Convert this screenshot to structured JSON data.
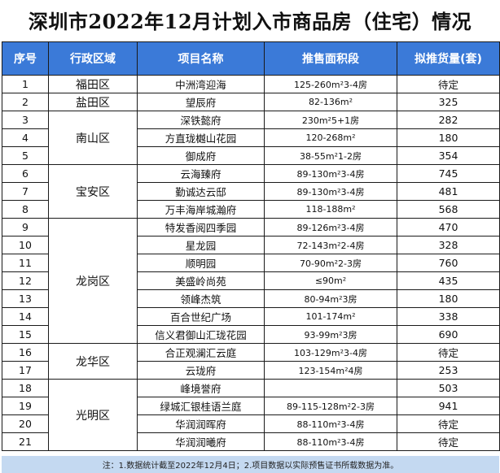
{
  "title": "深圳市2022年12月计划入市商品房（住宅）情况",
  "headers": {
    "seq": "序号",
    "district": "行政区域",
    "project": "项目名称",
    "area": "推售面积段",
    "units": "拟推货量(套)"
  },
  "rows": [
    {
      "seq": "1",
      "district": "福田区",
      "project": "中洲湾迎海",
      "area": "125-260m²3-4房",
      "units": "待定"
    },
    {
      "seq": "2",
      "district": "盐田区",
      "project": "望辰府",
      "area": "82-136m²",
      "units": "325"
    },
    {
      "seq": "3",
      "district": "南山区",
      "project": "深铁懿府",
      "area": "230m²5+1房",
      "units": "282"
    },
    {
      "seq": "4",
      "district": "",
      "project": "方直珑樾山花园",
      "area": "120-268m²",
      "units": "180"
    },
    {
      "seq": "5",
      "district": "",
      "project": "御成府",
      "area": "38-55m²1-2房",
      "units": "354"
    },
    {
      "seq": "6",
      "district": "宝安区",
      "project": "云海臻府",
      "area": "89-130m²3-4房",
      "units": "745"
    },
    {
      "seq": "7",
      "district": "",
      "project": "勤诚达云邸",
      "area": "89-130m²3-4房",
      "units": "481"
    },
    {
      "seq": "8",
      "district": "",
      "project": "万丰海岸城瀚府",
      "area": "118-188m²",
      "units": "568"
    },
    {
      "seq": "9",
      "district": "龙岗区",
      "project": "特发香阅四季园",
      "area": "89-126m²3-4房",
      "units": "470"
    },
    {
      "seq": "10",
      "district": "",
      "project": "星龙园",
      "area": "72-143m²2-4房",
      "units": "328"
    },
    {
      "seq": "11",
      "district": "",
      "project": "顺明园",
      "area": "70-90m²2-3房",
      "units": "760"
    },
    {
      "seq": "12",
      "district": "",
      "project": "美盛岭尚苑",
      "area": "≤90m²",
      "units": "435"
    },
    {
      "seq": "13",
      "district": "",
      "project": "领峰杰筑",
      "area": "80-94m²3房",
      "units": "180"
    },
    {
      "seq": "14",
      "district": "",
      "project": "百合世纪广场",
      "area": "101-174m²",
      "units": "338"
    },
    {
      "seq": "15",
      "district": "",
      "project": "信义君御山汇珑花园",
      "area": "93-99m²3房",
      "units": "690"
    },
    {
      "seq": "16",
      "district": "龙华区",
      "project": "合正观澜汇云庭",
      "area": "103-129m²3-4房",
      "units": "待定"
    },
    {
      "seq": "17",
      "district": "",
      "project": "云珑府",
      "area": "123-154m²4房",
      "units": "253"
    },
    {
      "seq": "18",
      "district": "光明区",
      "project": "峰境誉府",
      "area": "",
      "units": "503"
    },
    {
      "seq": "19",
      "district": "",
      "project": "绿城汇银桂语兰庭",
      "area": "89-115-128m²2-3房",
      "units": "941"
    },
    {
      "seq": "20",
      "district": "",
      "project": "华润润晖府",
      "area": "88-110m²3-4房",
      "units": "待定"
    },
    {
      "seq": "21",
      "district": "",
      "project": "华润润曦府",
      "area": "88-110m²3-4房",
      "units": "待定"
    }
  ],
  "district_spans": [
    1,
    1,
    3,
    0,
    0,
    3,
    0,
    0,
    7,
    0,
    0,
    0,
    0,
    0,
    0,
    2,
    0,
    4,
    0,
    0,
    0
  ],
  "note": "注：1.数据统计截至2022年12月4日；2.项目数据以实际预售证书所载数据为准。",
  "colors": {
    "header_bg": "#3b7ad8",
    "header_text": "#ffffff",
    "note_bg": "#c4d9f1",
    "border": "#1a1a1a"
  }
}
